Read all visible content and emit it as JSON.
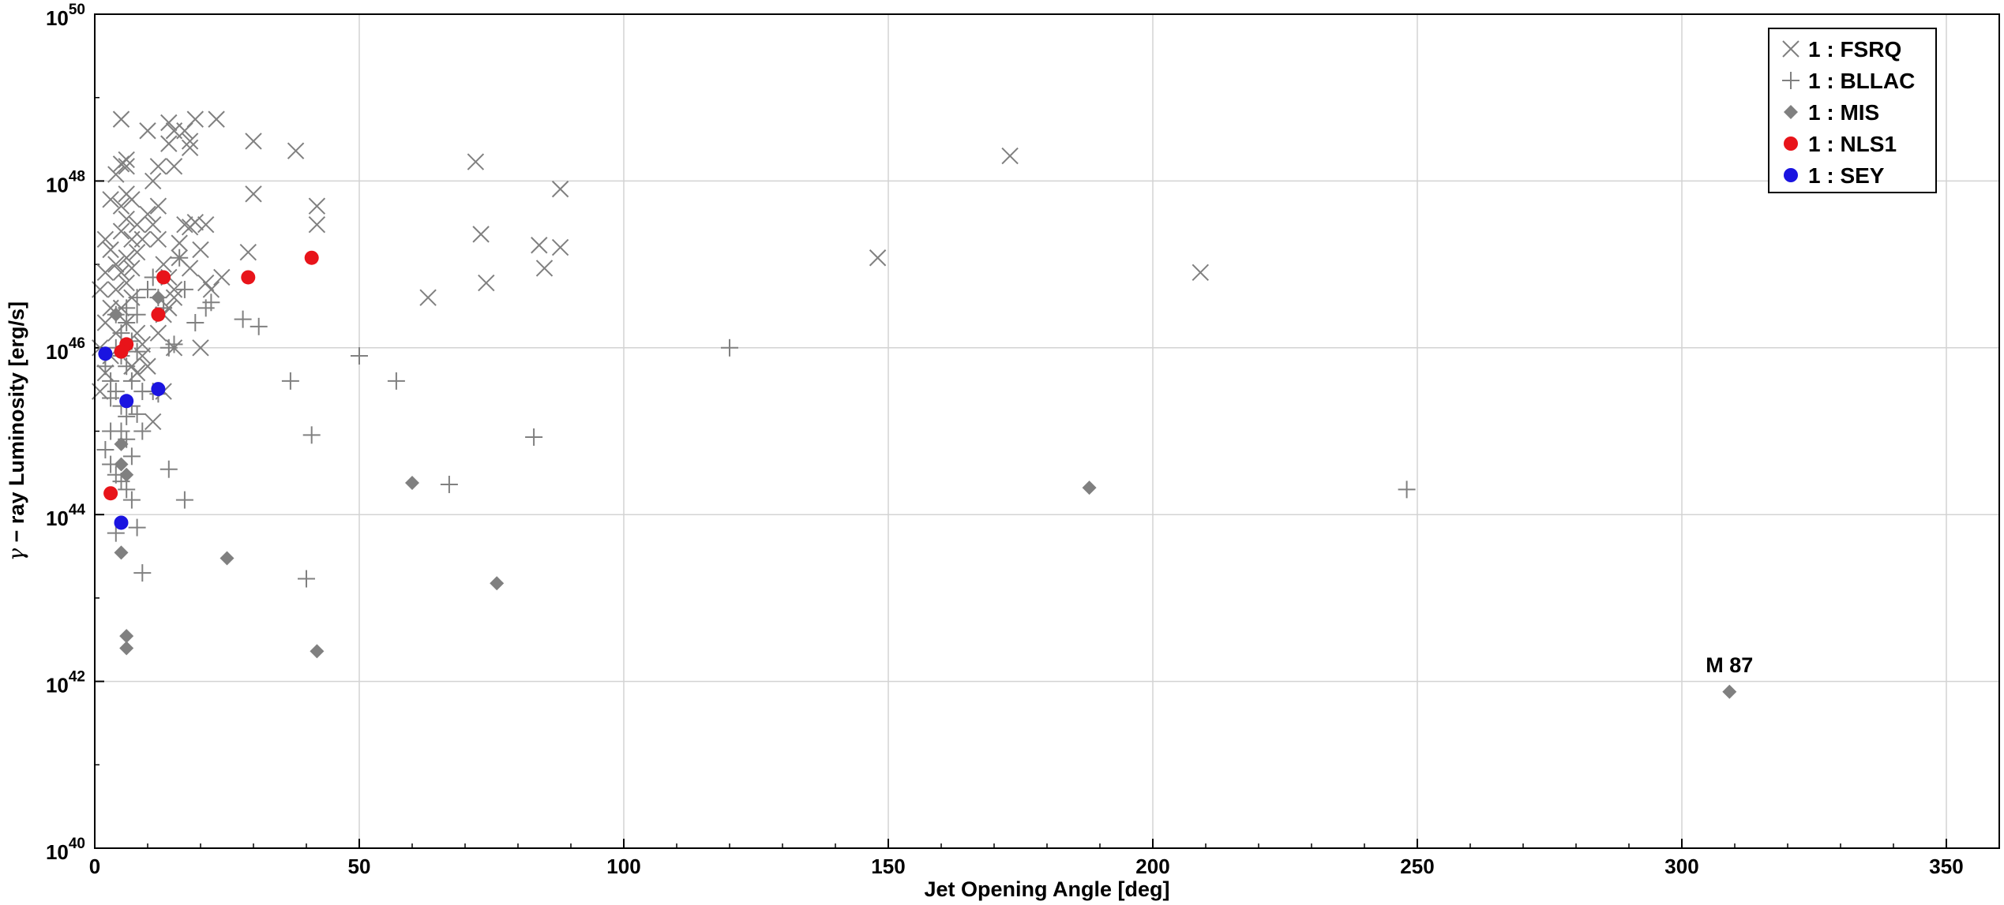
{
  "chart_data": {
    "type": "scatter",
    "title": "",
    "xlabel": "Jet Opening Angle [deg]",
    "ylabel_prefix": "γ",
    "ylabel_rest": " − ray Luminosity [erg/s]",
    "xlim": [
      0,
      360
    ],
    "ylim": [
      1e+40,
      1e+50
    ],
    "yscale": "log",
    "grid": true,
    "legend_position": "top-right",
    "x_ticks": [
      0,
      50,
      100,
      150,
      200,
      250,
      300,
      350
    ],
    "x_tick_labels": [
      "0",
      "50",
      "100",
      "150",
      "200",
      "250",
      "300",
      "350"
    ],
    "y_ticks": [
      1e+40,
      1e+42,
      1e+44,
      1e+46,
      1e+48,
      1e+50
    ],
    "y_tick_labels": [
      {
        "base": "10",
        "exp": "40"
      },
      {
        "base": "10",
        "exp": "42"
      },
      {
        "base": "10",
        "exp": "44"
      },
      {
        "base": "10",
        "exp": "46"
      },
      {
        "base": "10",
        "exp": "48"
      },
      {
        "base": "10",
        "exp": "50"
      }
    ],
    "annotations": [
      {
        "text": "M 87",
        "x": 309,
        "y": 7.5e+41
      }
    ],
    "series": [
      {
        "name": "1 : FSRQ",
        "marker": "x",
        "color": "#808080",
        "points": [
          [
            5,
            5.5e+48
          ],
          [
            4,
            1.2e+48
          ],
          [
            5,
            1.6e+48
          ],
          [
            6,
            1.8e+48
          ],
          [
            6,
            1.5e+48
          ],
          [
            10,
            4e+48
          ],
          [
            12,
            1.5e+48
          ],
          [
            14,
            5e+48
          ],
          [
            15,
            4e+48
          ],
          [
            17,
            4e+48
          ],
          [
            18,
            3e+48
          ],
          [
            19,
            5.5e+48
          ],
          [
            23,
            5.5e+48
          ],
          [
            18,
            2.5e+48
          ],
          [
            14,
            2.8e+48
          ],
          [
            15,
            1.5e+48
          ],
          [
            11,
            1e+48
          ],
          [
            12,
            5e+47
          ],
          [
            3,
            6e+47
          ],
          [
            5,
            5e+47
          ],
          [
            6,
            7e+47
          ],
          [
            7,
            6e+47
          ],
          [
            8,
            3e+47
          ],
          [
            9,
            2e+47
          ],
          [
            10,
            4e+47
          ],
          [
            11,
            3e+47
          ],
          [
            12,
            2e+47
          ],
          [
            13,
            1e+47
          ],
          [
            14,
            7e+46
          ],
          [
            15,
            5e+46
          ],
          [
            2,
            2e+47
          ],
          [
            3,
            1.5e+47
          ],
          [
            4,
            1e+47
          ],
          [
            5,
            2.5e+47
          ],
          [
            6,
            3.5e+47
          ],
          [
            7,
            2e+47
          ],
          [
            4,
            5e+46
          ],
          [
            3,
            3e+46
          ],
          [
            2,
            2e+46
          ],
          [
            1,
            1e+46
          ],
          [
            1,
            5e+46
          ],
          [
            2,
            8e+46
          ],
          [
            6,
            6e+46
          ],
          [
            7,
            4e+46
          ],
          [
            5,
            3e+46
          ],
          [
            4,
            1.5e+46
          ],
          [
            3,
            8e+45
          ],
          [
            2,
            5e+45
          ],
          [
            1,
            3e+45
          ],
          [
            6,
            2e+46
          ],
          [
            8,
            1.5e+46
          ],
          [
            9,
            8e+45
          ],
          [
            7,
            6e+45
          ],
          [
            8,
            5e+45
          ],
          [
            9,
            1.1e+46
          ],
          [
            10,
            6e+45
          ],
          [
            5,
            8e+46
          ],
          [
            6,
            1.2e+47
          ],
          [
            7,
            9e+46
          ],
          [
            8,
            1.4e+47
          ],
          [
            16,
            1.8e+47
          ],
          [
            17,
            3e+47
          ],
          [
            18,
            2.8e+47
          ],
          [
            19,
            3.2e+47
          ],
          [
            21,
            3e+47
          ],
          [
            20,
            1.5e+47
          ],
          [
            16,
            1.2e+47
          ],
          [
            18,
            9e+46
          ],
          [
            21,
            6e+46
          ],
          [
            22,
            5e+46
          ],
          [
            15,
            4e+46
          ],
          [
            13,
            2.5e+46
          ],
          [
            14,
            3e+46
          ],
          [
            12,
            1.5e+46
          ],
          [
            15,
            1e+46
          ],
          [
            24,
            7e+46
          ],
          [
            29,
            1.4e+47
          ],
          [
            30,
            7e+47
          ],
          [
            30,
            3e+48
          ],
          [
            38,
            2.3e+48
          ],
          [
            42,
            5e+47
          ],
          [
            42,
            3e+47
          ],
          [
            20,
            1e+46
          ],
          [
            11,
            1.3e+45
          ],
          [
            13,
            3e+45
          ],
          [
            63,
            4e+46
          ],
          [
            72,
            1.7e+48
          ],
          [
            73,
            2.3e+47
          ],
          [
            74,
            6e+46
          ],
          [
            84,
            1.7e+47
          ],
          [
            85,
            9e+46
          ],
          [
            88,
            1.6e+47
          ],
          [
            88,
            8e+47
          ],
          [
            148,
            1.2e+47
          ],
          [
            173,
            2e+48
          ],
          [
            209,
            8e+46
          ]
        ]
      },
      {
        "name": "1 : BLLAC",
        "marker": "+",
        "color": "#808080",
        "points": [
          [
            2,
            6e+45
          ],
          [
            3,
            4e+45
          ],
          [
            4,
            3e+45
          ],
          [
            5,
            2e+45
          ],
          [
            6,
            1.5e+45
          ],
          [
            7,
            2e+45
          ],
          [
            8,
            1.6e+45
          ],
          [
            9,
            1e+45
          ],
          [
            3,
            1e+45
          ],
          [
            2,
            6e+44
          ],
          [
            3,
            4e+44
          ],
          [
            4,
            3e+44
          ],
          [
            5,
            2.5e+44
          ],
          [
            6,
            2e+44
          ],
          [
            7,
            1.5e+44
          ],
          [
            5,
            8e+45
          ],
          [
            6,
            6e+45
          ],
          [
            7,
            4e+45
          ],
          [
            8,
            9e+45
          ],
          [
            4,
            1e+46
          ],
          [
            5,
            1.5e+46
          ],
          [
            6,
            2e+46
          ],
          [
            7,
            1.2e+46
          ],
          [
            8,
            2.5e+46
          ],
          [
            9,
            3e+45
          ],
          [
            3,
            2.5e+45
          ],
          [
            4,
            2.5e+46
          ],
          [
            6,
            3e+46
          ],
          [
            8,
            4e+46
          ],
          [
            10,
            5e+46
          ],
          [
            11,
            7e+46
          ],
          [
            12,
            4e+46
          ],
          [
            13,
            3e+46
          ],
          [
            14,
            1e+46
          ],
          [
            15,
            1.1e+46
          ],
          [
            16,
            1.2e+47
          ],
          [
            17,
            5e+46
          ],
          [
            19,
            2e+46
          ],
          [
            21,
            3e+46
          ],
          [
            22,
            3.5e+46
          ],
          [
            28,
            2.2e+46
          ],
          [
            31,
            1.8e+46
          ],
          [
            6,
            8e+44
          ],
          [
            7,
            5e+44
          ],
          [
            8,
            7e+43
          ],
          [
            9,
            2e+43
          ],
          [
            4,
            6e+43
          ],
          [
            5,
            1e+45
          ],
          [
            11,
            3e+45
          ],
          [
            12,
            2.8e+45
          ],
          [
            14,
            3.5e+44
          ],
          [
            17,
            1.5e+44
          ],
          [
            37,
            4e+45
          ],
          [
            41,
            9e+44
          ],
          [
            40,
            1.7e+43
          ],
          [
            50,
            8e+45
          ],
          [
            57,
            4e+45
          ],
          [
            67,
            2.3e+44
          ],
          [
            83,
            8.5e+44
          ],
          [
            120,
            1e+46
          ],
          [
            248,
            2e+44
          ]
        ]
      },
      {
        "name": "1 : MIS",
        "marker": "diamond",
        "color": "#808080",
        "points": [
          [
            4,
            2.5e+46
          ],
          [
            5,
            7e+44
          ],
          [
            5,
            4e+44
          ],
          [
            6,
            3e+44
          ],
          [
            5,
            3.5e+43
          ],
          [
            6,
            3.5e+42
          ],
          [
            6,
            2.5e+42
          ],
          [
            12,
            4e+46
          ],
          [
            25,
            3e+43
          ],
          [
            42,
            2.3e+42
          ],
          [
            60,
            2.4e+44
          ],
          [
            76,
            1.5e+43
          ],
          [
            188,
            2.1e+44
          ],
          [
            309,
            7.5e+41
          ]
        ]
      },
      {
        "name": "1 : NLS1",
        "marker": "circle",
        "color": "#e8141a",
        "points": [
          [
            13,
            7e+46
          ],
          [
            29,
            7e+46
          ],
          [
            41,
            1.2e+47
          ],
          [
            12,
            2.5e+46
          ],
          [
            6,
            1.1e+46
          ],
          [
            5,
            9e+45
          ],
          [
            3,
            1.8e+44
          ]
        ]
      },
      {
        "name": "1 : SEY",
        "marker": "circle",
        "color": "#1a14e0",
        "points": [
          [
            2,
            8.5e+45
          ],
          [
            6,
            2.3e+45
          ],
          [
            12,
            3.2e+45
          ],
          [
            5,
            8e+43
          ]
        ]
      }
    ]
  }
}
